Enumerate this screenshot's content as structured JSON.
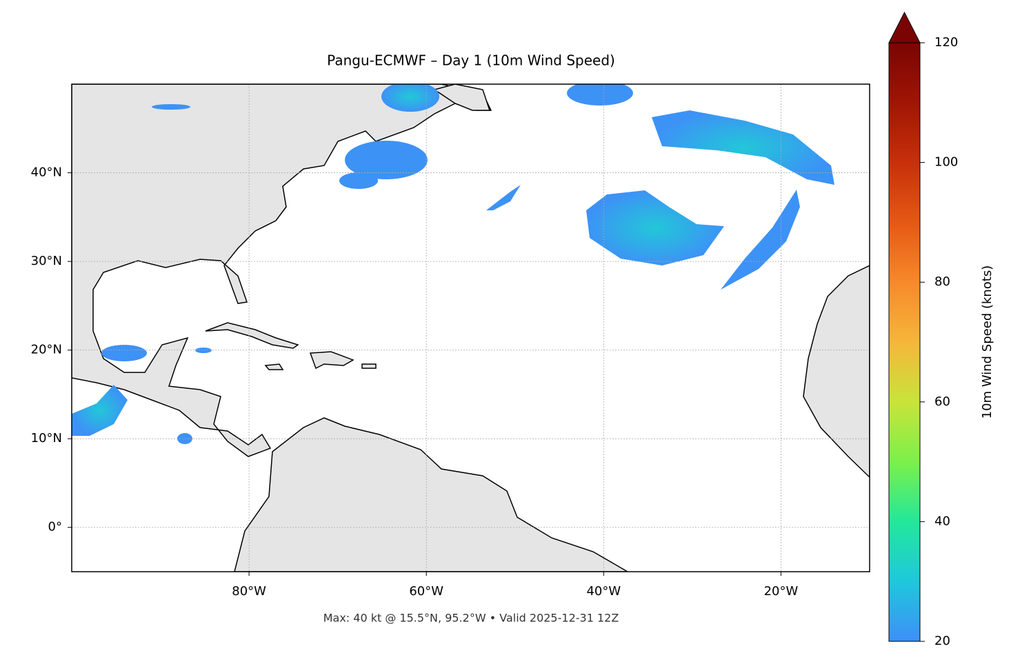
{
  "title": "Pangu-ECMWF – Day 1 (10m Wind Speed)",
  "footer": "Max: 40 kt @ 15.5°N, 95.2°W • Valid 2025-12-31 12Z",
  "map": {
    "lonlim": [
      -100,
      -10
    ],
    "latlim": [
      -5,
      50
    ],
    "lon_ticks": [
      {
        "value": -80,
        "label": "80°W"
      },
      {
        "value": -60,
        "label": "60°W"
      },
      {
        "value": -40,
        "label": "40°W"
      },
      {
        "value": -20,
        "label": "20°W"
      }
    ],
    "lat_ticks": [
      {
        "value": 0,
        "label": "0°"
      },
      {
        "value": 10,
        "label": "10°N"
      },
      {
        "value": 20,
        "label": "20°N"
      },
      {
        "value": 30,
        "label": "30°N"
      },
      {
        "value": 40,
        "label": "40°N"
      }
    ]
  },
  "colorbar": {
    "label": "10m Wind Speed (knots)",
    "lim": [
      20,
      120
    ],
    "ticks": [
      20,
      40,
      60,
      80,
      100,
      120
    ]
  }
}
